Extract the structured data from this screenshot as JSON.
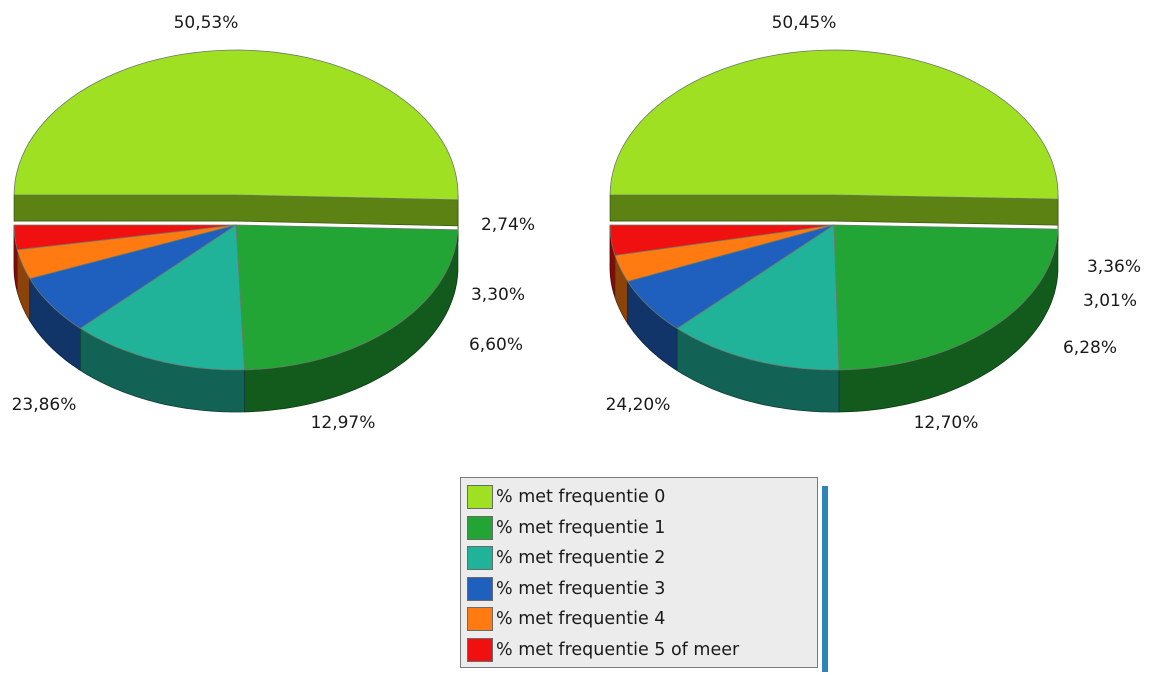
{
  "chart_data": [
    {
      "type": "pie",
      "categories": [
        "% met frequentie 0",
        "% met frequentie 1",
        "% met frequentie 2",
        "% met frequentie 3",
        "% met frequentie 4",
        "% met frequentie 5 of meer"
      ],
      "values": [
        50.53,
        23.86,
        12.97,
        6.6,
        3.3,
        2.74
      ],
      "labels": [
        "50,53%",
        "23,86%",
        "12,97%",
        "6,60%",
        "3,30%",
        "2,74%"
      ],
      "exploded_slice": "% met frequentie 0",
      "style": "3d"
    },
    {
      "type": "pie",
      "categories": [
        "% met frequentie 0",
        "% met frequentie 1",
        "% met frequentie 2",
        "% met frequentie 3",
        "% met frequentie 4",
        "% met frequentie 5 of meer"
      ],
      "values": [
        50.45,
        24.2,
        12.7,
        6.28,
        3.01,
        3.36
      ],
      "labels": [
        "50,45%",
        "24,20%",
        "12,70%",
        "6,28%",
        "3,01%",
        "3,36%"
      ],
      "exploded_slice": "% met frequentie 0",
      "style": "3d"
    }
  ],
  "legend": {
    "placement": "bottom-center",
    "items": [
      {
        "label": "% met frequentie 0",
        "color": "#9fe022"
      },
      {
        "label": "% met frequentie 1",
        "color": "#22a535"
      },
      {
        "label": "% met frequentie 2",
        "color": "#20b39a"
      },
      {
        "label": "% met frequentie 3",
        "color": "#1f5fbe"
      },
      {
        "label": "% met frequentie 4",
        "color": "#ff7a10"
      },
      {
        "label": "% met frequentie 5 of meer",
        "color": "#f01010"
      }
    ]
  }
}
